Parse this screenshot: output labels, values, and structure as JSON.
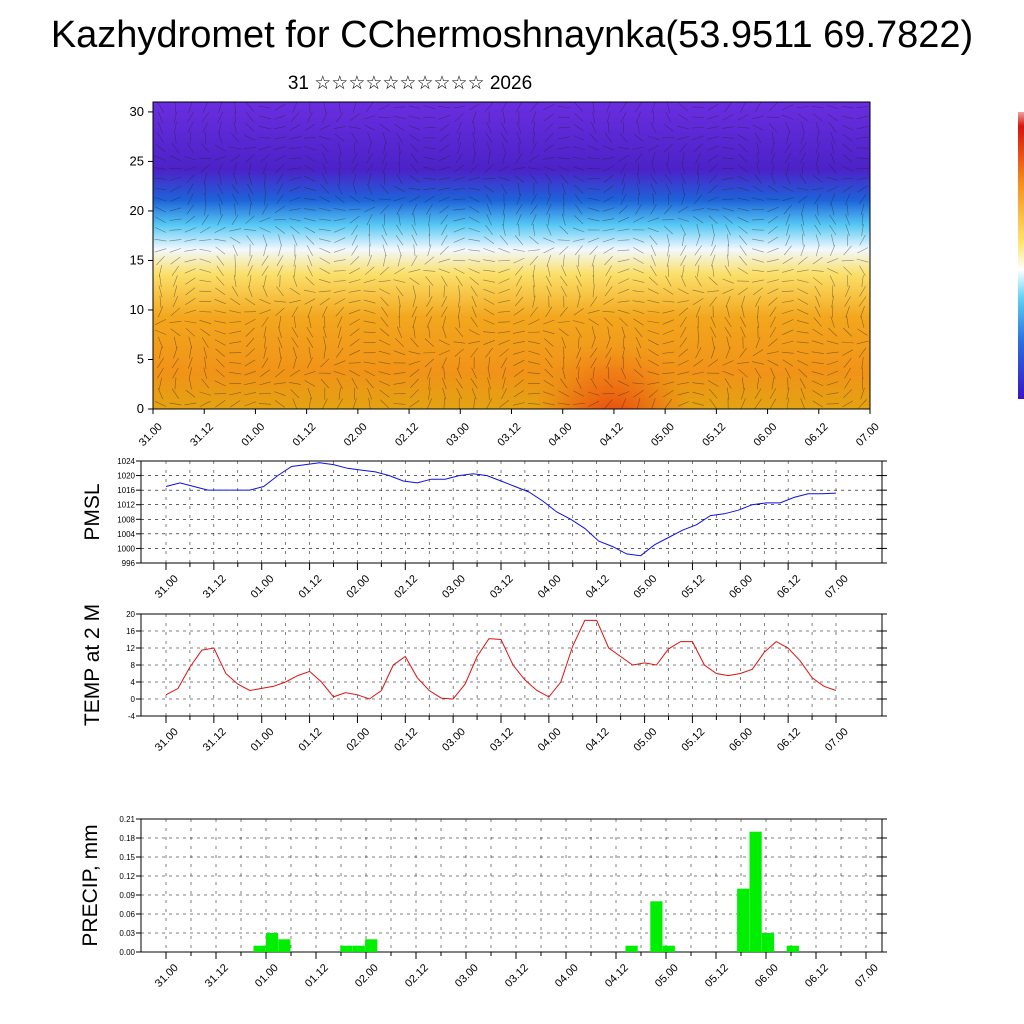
{
  "header": {
    "title": "Kazhydromet for CChermoshnaynka(53.9511 69.7822)",
    "subtitle": "31 ☆☆☆☆☆☆☆☆☆☆ 2026"
  },
  "colors": {
    "pmsl": "#1010dd",
    "temp": "#dd1111",
    "precip": "#00ee00",
    "grid": "#000000"
  },
  "chart_data": [
    {
      "type": "heatmap",
      "name": "cross-section",
      "xticklabels": [
        "31.00",
        "31.12",
        "01.00",
        "01.12",
        "02.00",
        "02.12",
        "03.00",
        "03.12",
        "04.00",
        "04.12",
        "05.00",
        "05.12",
        "06.00",
        "06.12",
        "07.00"
      ],
      "yticks": [
        0,
        5,
        10,
        15,
        20,
        25,
        30
      ],
      "ylim": [
        0,
        31
      ],
      "colorbar": "blue-cyan-white-yellow-orange-red"
    },
    {
      "type": "line",
      "name": "pmsl",
      "ylabel": "PMSL",
      "ylim": [
        996,
        1024
      ],
      "yticks": [
        996,
        1000,
        1004,
        1008,
        1012,
        1016,
        1020,
        1024
      ],
      "xticklabels": [
        "31.00",
        "31.12",
        "01.00",
        "01.12",
        "02.00",
        "02.12",
        "03.00",
        "03.12",
        "04.00",
        "04.12",
        "05.00",
        "05.12",
        "06.00",
        "06.12",
        "07.00"
      ],
      "values": [
        1017,
        1018,
        1017,
        1016,
        1016,
        1016,
        1016,
        1017,
        1020,
        1022.5,
        1023,
        1023.5,
        1023,
        1022,
        1021.5,
        1021,
        1020,
        1018.5,
        1018,
        1019,
        1019,
        1020,
        1020.5,
        1020,
        1018.5,
        1017,
        1015.5,
        1013,
        1010,
        1008,
        1005.5,
        1002,
        1000.5,
        998.5,
        998,
        1001,
        1003,
        1005,
        1006.5,
        1009,
        1009.5,
        1010.5,
        1012,
        1012.5,
        1012.5,
        1014,
        1015,
        1015,
        1015.2
      ]
    },
    {
      "type": "line",
      "name": "temp",
      "ylabel": "TEMP at 2 M",
      "ylim": [
        -4,
        20
      ],
      "yticks": [
        -4,
        0,
        4,
        8,
        12,
        16,
        20
      ],
      "xticklabels": [
        "31.00",
        "31.12",
        "01.00",
        "01.12",
        "02.00",
        "02.12",
        "03.00",
        "03.12",
        "04.00",
        "04.12",
        "05.00",
        "05.12",
        "06.00",
        "06.12",
        "07.00"
      ],
      "values": [
        1,
        2.5,
        7.5,
        11.5,
        12,
        6,
        3.5,
        2,
        2.5,
        3,
        4,
        5.5,
        6.5,
        4,
        0.5,
        1.5,
        1,
        0,
        2,
        8,
        10,
        5,
        2,
        0.2,
        0,
        3.5,
        10,
        14.2,
        14,
        8,
        4.5,
        2,
        0.5,
        4,
        12.5,
        18.5,
        18.5,
        12,
        10,
        8,
        8.5,
        8,
        11.8,
        13.5,
        13.5,
        8,
        6,
        5.5,
        6,
        7,
        11,
        13.5,
        12,
        9,
        5,
        3,
        2
      ]
    },
    {
      "type": "bar",
      "name": "precip",
      "ylabel": "PRECIP, mm",
      "ylim": [
        0,
        0.21
      ],
      "yticks": [
        "0.00",
        "0.03",
        "0.06",
        "0.09",
        "0.12",
        "0.15",
        "0.18",
        "0.21"
      ],
      "xticklabels": [
        "31.00",
        "31.12",
        "01.00",
        "01.12",
        "02.00",
        "02.12",
        "03.00",
        "03.12",
        "04.00",
        "04.12",
        "05.00",
        "05.12",
        "06.00",
        "06.12",
        "07.00"
      ],
      "values": [
        0,
        0,
        0,
        0,
        0,
        0,
        0,
        0,
        0.01,
        0.03,
        0.02,
        0,
        0,
        0,
        0,
        0.01,
        0.01,
        0.02,
        0,
        0,
        0,
        0,
        0,
        0,
        0,
        0,
        0,
        0,
        0,
        0,
        0,
        0,
        0,
        0,
        0,
        0,
        0,
        0,
        0.01,
        0,
        0.08,
        0.01,
        0,
        0,
        0,
        0,
        0,
        0.1,
        0.19,
        0.03,
        0,
        0.01,
        0,
        0,
        0,
        0
      ]
    }
  ]
}
